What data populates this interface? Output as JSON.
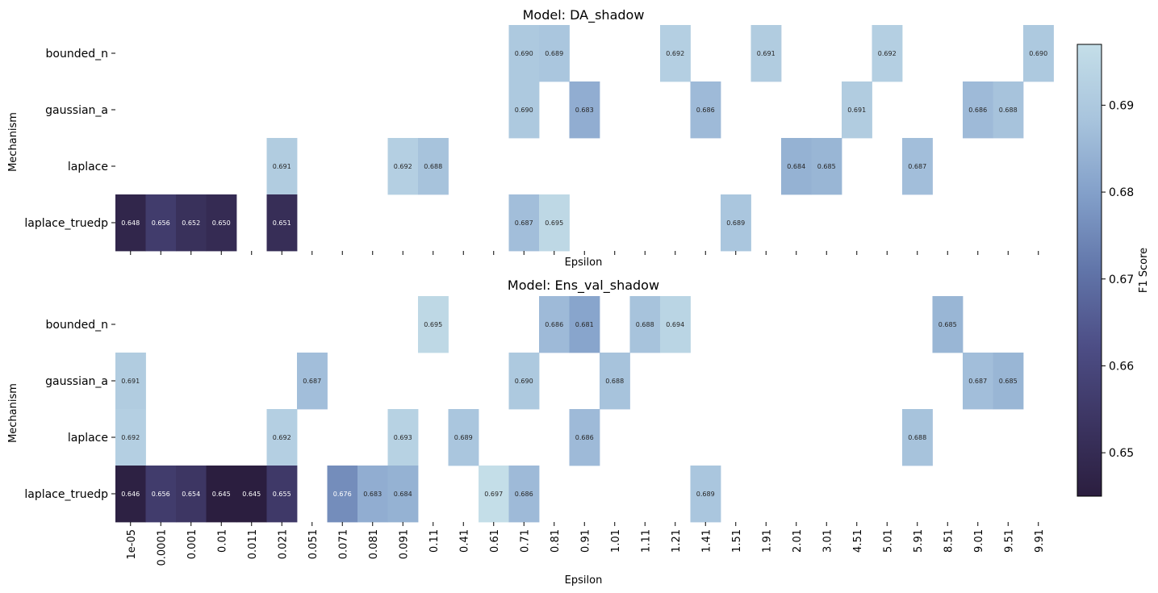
{
  "chart_data": [
    {
      "type": "heatmap",
      "title": "Model: DA_shadow",
      "xlabel": "Epsilon",
      "ylabel": "Mechanism",
      "categories": [
        "1e-05",
        "0.0001",
        "0.001",
        "0.01",
        "0.011",
        "0.021",
        "0.051",
        "0.071",
        "0.081",
        "0.091",
        "0.11",
        "0.41",
        "0.61",
        "0.71",
        "0.81",
        "0.91",
        "1.01",
        "1.11",
        "1.21",
        "1.41",
        "1.51",
        "1.91",
        "2.01",
        "3.01",
        "4.51",
        "5.01",
        "5.91",
        "8.51",
        "9.01",
        "9.51",
        "9.91"
      ],
      "rows": [
        "bounded_n",
        "gaussian_a",
        "laplace",
        "laplace_truedp"
      ],
      "x_tick_labels_visible": false,
      "values": [
        [
          null,
          null,
          null,
          null,
          null,
          null,
          null,
          null,
          null,
          null,
          null,
          null,
          null,
          0.69,
          0.689,
          null,
          null,
          null,
          0.692,
          null,
          null,
          0.691,
          null,
          null,
          null,
          0.692,
          null,
          null,
          null,
          null,
          0.69
        ],
        [
          null,
          null,
          null,
          null,
          null,
          null,
          null,
          null,
          null,
          null,
          null,
          null,
          null,
          0.69,
          null,
          0.683,
          null,
          null,
          null,
          0.686,
          null,
          null,
          null,
          null,
          0.691,
          null,
          null,
          null,
          0.686,
          0.688,
          null
        ],
        [
          null,
          null,
          null,
          null,
          null,
          0.691,
          null,
          null,
          null,
          0.692,
          0.688,
          null,
          null,
          null,
          null,
          null,
          null,
          null,
          null,
          null,
          null,
          null,
          0.684,
          0.685,
          null,
          null,
          0.687,
          null,
          null,
          null,
          null
        ],
        [
          0.648,
          0.656,
          0.652,
          0.65,
          null,
          0.651,
          null,
          null,
          null,
          null,
          null,
          null,
          null,
          0.687,
          0.695,
          null,
          null,
          null,
          null,
          null,
          0.689,
          null,
          null,
          null,
          null,
          null,
          null,
          null,
          null,
          null,
          null
        ]
      ]
    },
    {
      "type": "heatmap",
      "title": "Model: Ens_val_shadow",
      "xlabel": "Epsilon",
      "ylabel": "Mechanism",
      "categories": [
        "1e-05",
        "0.0001",
        "0.001",
        "0.01",
        "0.011",
        "0.021",
        "0.051",
        "0.071",
        "0.081",
        "0.091",
        "0.11",
        "0.41",
        "0.61",
        "0.71",
        "0.81",
        "0.91",
        "1.01",
        "1.11",
        "1.21",
        "1.41",
        "1.51",
        "1.91",
        "2.01",
        "3.01",
        "4.51",
        "5.01",
        "5.91",
        "8.51",
        "9.01",
        "9.51",
        "9.91"
      ],
      "rows": [
        "bounded_n",
        "gaussian_a",
        "laplace",
        "laplace_truedp"
      ],
      "x_tick_labels_visible": true,
      "values": [
        [
          null,
          null,
          null,
          null,
          null,
          null,
          null,
          null,
          null,
          null,
          0.695,
          null,
          null,
          null,
          0.686,
          0.681,
          null,
          0.688,
          0.694,
          null,
          null,
          null,
          null,
          null,
          null,
          null,
          null,
          0.685,
          null,
          null,
          null
        ],
        [
          0.691,
          null,
          null,
          null,
          null,
          null,
          0.687,
          null,
          null,
          null,
          null,
          null,
          null,
          0.69,
          null,
          null,
          0.688,
          null,
          null,
          null,
          null,
          null,
          null,
          null,
          null,
          null,
          null,
          null,
          0.687,
          0.685,
          null
        ],
        [
          0.692,
          null,
          null,
          null,
          null,
          0.692,
          null,
          null,
          null,
          0.693,
          null,
          0.689,
          null,
          null,
          null,
          0.686,
          null,
          null,
          null,
          null,
          null,
          null,
          null,
          null,
          null,
          null,
          0.688,
          null,
          null,
          null,
          null
        ],
        [
          0.646,
          0.656,
          0.654,
          0.645,
          0.645,
          0.655,
          null,
          0.676,
          0.683,
          0.684,
          null,
          null,
          0.697,
          0.686,
          null,
          null,
          null,
          null,
          null,
          0.689,
          null,
          null,
          null,
          null,
          null,
          null,
          null,
          null,
          null,
          null,
          null
        ]
      ]
    }
  ],
  "colorbar": {
    "label": "F1 Score",
    "vmin": 0.645,
    "vmax": 0.697,
    "ticks": [
      "0.65",
      "0.66",
      "0.67",
      "0.68",
      "0.69"
    ],
    "tick_values": [
      0.65,
      0.66,
      0.67,
      0.68,
      0.69
    ],
    "colormap": [
      "#2b1e3f",
      "#3c3562",
      "#4d4e86",
      "#6175a9",
      "#829fc9",
      "#a8c4dd",
      "#c4dee8"
    ]
  }
}
